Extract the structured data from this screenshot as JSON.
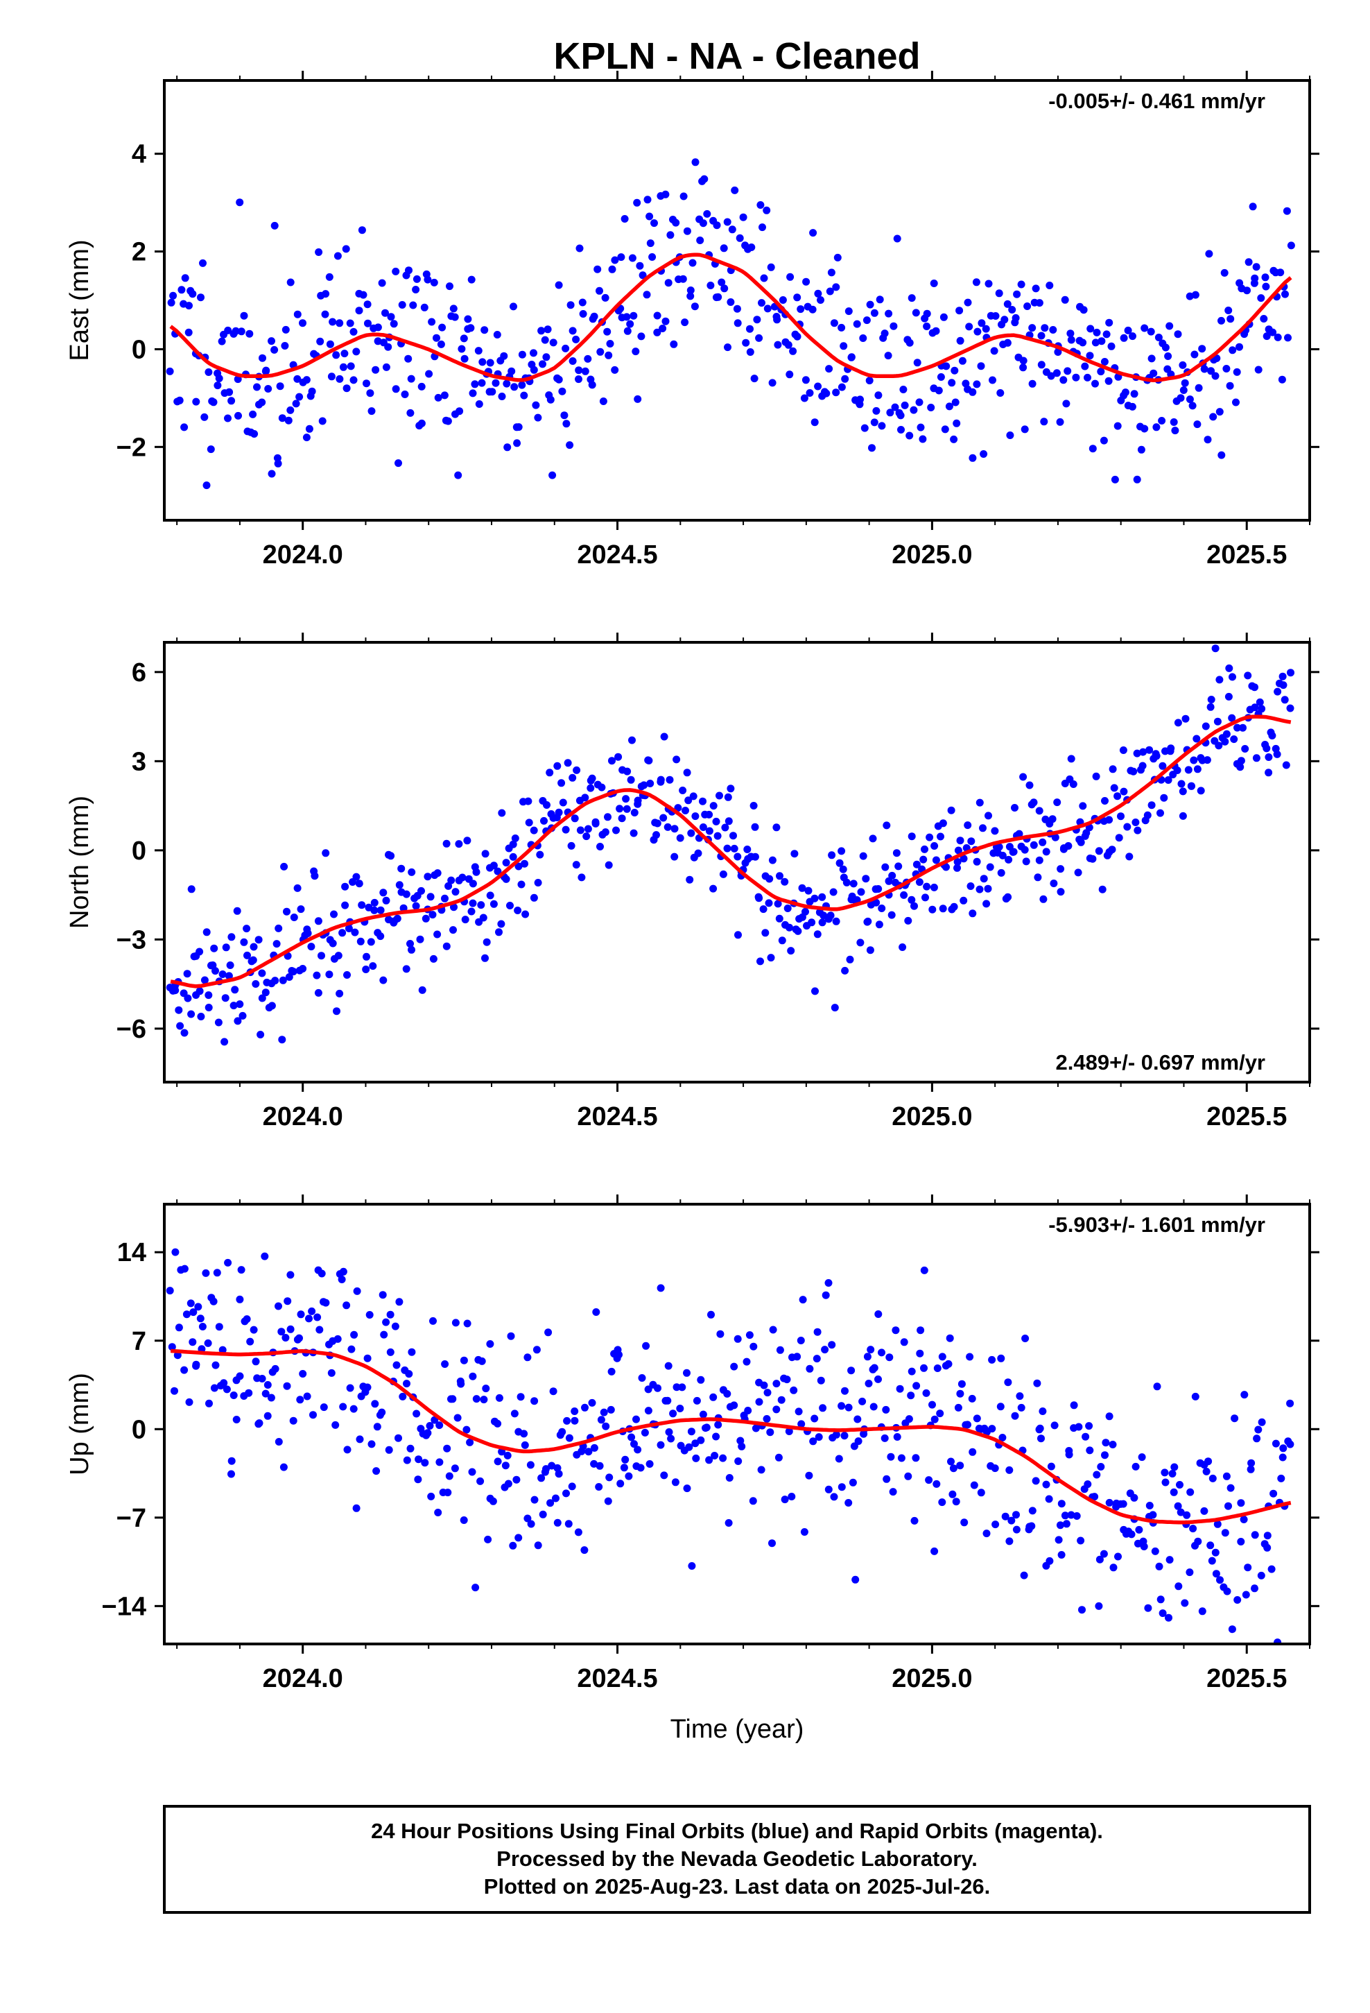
{
  "title": "KPLN  - NA - Cleaned",
  "xlabel": "Time (year)",
  "footer": {
    "lines": [
      "24 Hour Positions Using Final Orbits (blue) and Rapid Orbits (magenta).",
      "Processed by the Nevada Geodetic Laboratory.",
      "Plotted on 2025-Aug-23. Last data on 2025-Jul-26."
    ]
  },
  "colors": {
    "points": "#0000ff",
    "fit": "#ff0000",
    "frame": "#000000"
  },
  "chart_data": [
    {
      "type": "scatter",
      "ylabel": "East (mm)",
      "rate_text": "-0.005+/- 0.461 mm/yr",
      "xlim": [
        2023.78,
        2025.6
      ],
      "ylim": [
        -3.5,
        5.5
      ],
      "xticks": [
        "2024.0",
        "2024.5",
        "2025.0",
        "2025.5"
      ],
      "xtick_values": [
        2024.0,
        2024.5,
        2025.0,
        2025.5
      ],
      "yticks": [
        "−2",
        "0",
        "2",
        "4"
      ],
      "ytick_values": [
        -2,
        0,
        2,
        4
      ],
      "points_seed": 11,
      "scatter_sd": 1.0,
      "fit_series": {
        "x": [
          2023.79,
          2023.85,
          2023.9,
          2023.95,
          2024.0,
          2024.05,
          2024.1,
          2024.13,
          2024.2,
          2024.25,
          2024.3,
          2024.35,
          2024.4,
          2024.45,
          2024.5,
          2024.55,
          2024.6,
          2024.63,
          2024.7,
          2024.75,
          2024.8,
          2024.85,
          2024.9,
          2024.95,
          2025.0,
          2025.05,
          2025.1,
          2025.13,
          2025.2,
          2025.25,
          2025.3,
          2025.35,
          2025.4,
          2025.45,
          2025.5,
          2025.57
        ],
        "y": [
          0.5,
          -0.3,
          -0.55,
          -0.55,
          -0.35,
          0.0,
          0.3,
          0.3,
          0.0,
          -0.3,
          -0.55,
          -0.65,
          -0.4,
          0.2,
          0.9,
          1.5,
          1.9,
          1.95,
          1.6,
          1.0,
          0.3,
          -0.25,
          -0.55,
          -0.55,
          -0.35,
          -0.05,
          0.25,
          0.3,
          0.05,
          -0.25,
          -0.5,
          -0.65,
          -0.55,
          -0.1,
          0.5,
          1.5
        ]
      }
    },
    {
      "type": "scatter",
      "ylabel": "North (mm)",
      "rate_text": "2.489+/- 0.697 mm/yr",
      "xlim": [
        2023.78,
        2025.6
      ],
      "ylim": [
        -7.8,
        7.0
      ],
      "xticks": [
        "2024.0",
        "2024.5",
        "2025.0",
        "2025.5"
      ],
      "xtick_values": [
        2024.0,
        2024.5,
        2025.0,
        2025.5
      ],
      "yticks": [
        "−6",
        "−3",
        "0",
        "3",
        "6"
      ],
      "ytick_values": [
        -6,
        -3,
        0,
        3,
        6
      ],
      "points_seed": 29,
      "scatter_sd": 1.1,
      "fit_series": {
        "x": [
          2023.79,
          2023.83,
          2023.9,
          2023.95,
          2024.0,
          2024.05,
          2024.1,
          2024.15,
          2024.2,
          2024.25,
          2024.3,
          2024.35,
          2024.4,
          2024.45,
          2024.5,
          2024.52,
          2024.55,
          2024.6,
          2024.65,
          2024.7,
          2024.75,
          2024.8,
          2024.85,
          2024.9,
          2024.95,
          2025.0,
          2025.05,
          2025.1,
          2025.15,
          2025.2,
          2025.25,
          2025.3,
          2025.35,
          2025.4,
          2025.45,
          2025.5,
          2025.53,
          2025.57
        ],
        "y": [
          -4.4,
          -4.6,
          -4.3,
          -3.7,
          -3.1,
          -2.6,
          -2.3,
          -2.1,
          -2.0,
          -1.7,
          -1.1,
          -0.2,
          0.8,
          1.6,
          2.0,
          2.05,
          1.9,
          1.2,
          0.2,
          -0.8,
          -1.6,
          -1.9,
          -2.0,
          -1.7,
          -1.2,
          -0.6,
          -0.1,
          0.25,
          0.45,
          0.6,
          0.9,
          1.5,
          2.3,
          3.2,
          4.0,
          4.5,
          4.5,
          4.3
        ]
      }
    },
    {
      "type": "scatter",
      "ylabel": "Up (mm)",
      "rate_text": "-5.903+/- 1.601 mm/yr",
      "xlim": [
        2023.78,
        2025.6
      ],
      "ylim": [
        -17.0,
        17.8
      ],
      "xticks": [
        "2024.0",
        "2024.5",
        "2025.0",
        "2025.5"
      ],
      "xtick_values": [
        2024.0,
        2024.5,
        2025.0,
        2025.5
      ],
      "yticks": [
        "−14",
        "−7",
        "0",
        "7",
        "14"
      ],
      "ytick_values": [
        -14,
        -7,
        0,
        7,
        14
      ],
      "points_seed": 47,
      "scatter_sd": 4.3,
      "fit_series": {
        "x": [
          2023.79,
          2023.85,
          2023.9,
          2023.95,
          2024.0,
          2024.05,
          2024.1,
          2024.15,
          2024.2,
          2024.25,
          2024.3,
          2024.35,
          2024.4,
          2024.45,
          2024.5,
          2024.55,
          2024.6,
          2024.65,
          2024.7,
          2024.75,
          2024.8,
          2024.85,
          2024.9,
          2024.95,
          2025.0,
          2025.05,
          2025.1,
          2025.15,
          2025.2,
          2025.25,
          2025.3,
          2025.35,
          2025.4,
          2025.45,
          2025.5,
          2025.57
        ],
        "y": [
          6.2,
          6.0,
          5.9,
          6.0,
          6.2,
          5.9,
          5.0,
          3.5,
          1.5,
          -0.3,
          -1.3,
          -1.8,
          -1.6,
          -1.0,
          -0.2,
          0.3,
          0.7,
          0.8,
          0.6,
          0.3,
          0.0,
          -0.1,
          0.0,
          0.1,
          0.2,
          0.0,
          -0.8,
          -2.2,
          -4.0,
          -5.6,
          -6.8,
          -7.3,
          -7.4,
          -7.2,
          -6.7,
          -5.8
        ]
      }
    }
  ]
}
